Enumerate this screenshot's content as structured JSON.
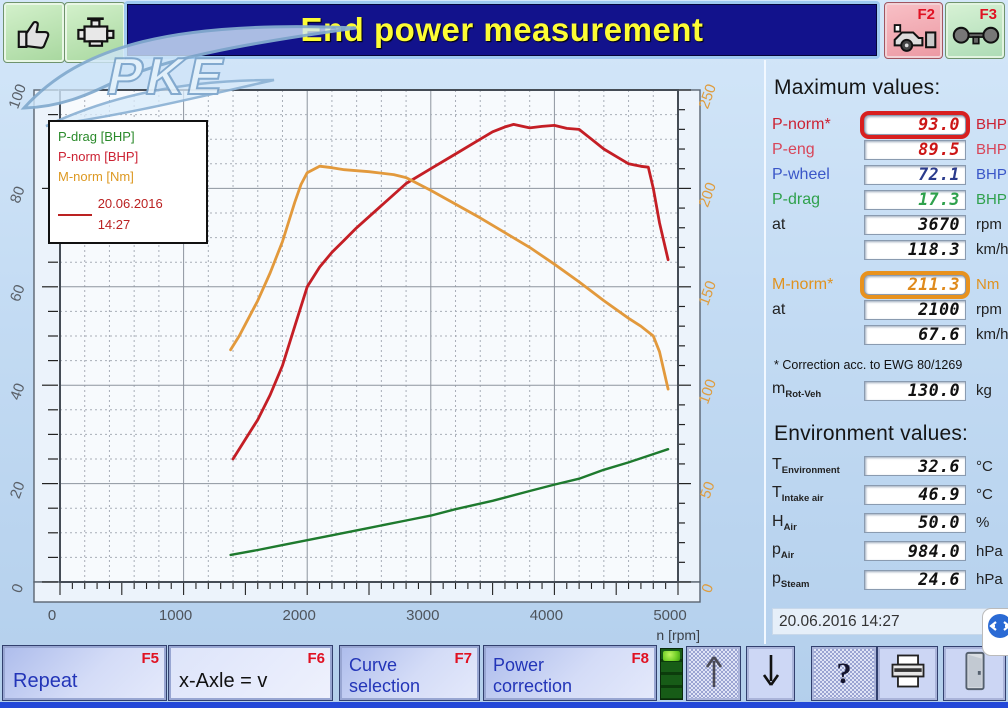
{
  "header": {
    "title": "End power measurement",
    "f2": "F2",
    "f3": "F3"
  },
  "watermark_text": "PKE",
  "chart_data": {
    "type": "line",
    "title": "",
    "xlabel": "n [rpm]",
    "x_range": [
      0,
      5000
    ],
    "x_ticks": [
      0,
      1000,
      2000,
      3000,
      4000,
      5000
    ],
    "x_minor_step": 200,
    "x_tick_step": 100,
    "y_left": {
      "range": [
        0,
        100
      ],
      "ticks": [
        0,
        20,
        40,
        60,
        80,
        100
      ],
      "minor_step": 5,
      "label_color": "#5a6068"
    },
    "y_right": {
      "range": [
        0,
        250
      ],
      "ticks": [
        0,
        50,
        100,
        150,
        200,
        250
      ],
      "tick_step": 10,
      "label_color": "#de9c3e"
    },
    "grid": "minor dashed, major solid",
    "legend_position": "top-left",
    "legend": {
      "entries": [
        {
          "label": "P-drag [BHP]",
          "color": "#2a8a2a"
        },
        {
          "label": "P-norm [BHP]",
          "color": "#cc2233"
        },
        {
          "label": "M-norm [Nm]",
          "color": "#dd9922"
        }
      ],
      "run": {
        "label": "20.06.2016 14:27",
        "color": "#bb2222"
      }
    },
    "series": [
      {
        "name": "P-drag",
        "unit": "BHP",
        "axis": "left",
        "color": "#1e7a2e",
        "width": 2.4,
        "points": [
          [
            1380,
            5.5
          ],
          [
            1600,
            6.5
          ],
          [
            1800,
            7.5
          ],
          [
            2000,
            8.5
          ],
          [
            2200,
            9.5
          ],
          [
            2500,
            11
          ],
          [
            2800,
            12.5
          ],
          [
            3000,
            13.5
          ],
          [
            3200,
            14.8
          ],
          [
            3500,
            16.5
          ],
          [
            3800,
            18.5
          ],
          [
            4000,
            19.8
          ],
          [
            4200,
            21
          ],
          [
            4400,
            22.8
          ],
          [
            4600,
            24.3
          ],
          [
            4800,
            26
          ],
          [
            4920,
            27
          ]
        ]
      },
      {
        "name": "P-norm",
        "unit": "BHP",
        "axis": "left",
        "color": "#c41e25",
        "width": 2.8,
        "points": [
          [
            1400,
            25
          ],
          [
            1500,
            29
          ],
          [
            1600,
            33
          ],
          [
            1700,
            38
          ],
          [
            1800,
            44
          ],
          [
            1900,
            52
          ],
          [
            2000,
            60
          ],
          [
            2100,
            64
          ],
          [
            2200,
            67
          ],
          [
            2300,
            69.5
          ],
          [
            2400,
            72
          ],
          [
            2600,
            76.5
          ],
          [
            2800,
            81
          ],
          [
            3000,
            84
          ],
          [
            3200,
            87
          ],
          [
            3400,
            90
          ],
          [
            3500,
            91.5
          ],
          [
            3600,
            92.5
          ],
          [
            3670,
            93
          ],
          [
            3800,
            92.3
          ],
          [
            3900,
            92.6
          ],
          [
            4000,
            92.8
          ],
          [
            4100,
            92.2
          ],
          [
            4200,
            92
          ],
          [
            4300,
            90
          ],
          [
            4400,
            88
          ],
          [
            4500,
            86.5
          ],
          [
            4600,
            85
          ],
          [
            4700,
            84.5
          ],
          [
            4760,
            84.3
          ],
          [
            4800,
            80
          ],
          [
            4850,
            73
          ],
          [
            4920,
            65.5
          ]
        ]
      },
      {
        "name": "M-norm",
        "unit": "Nm",
        "axis": "right",
        "color": "#e2993c",
        "width": 2.8,
        "points": [
          [
            1380,
            118
          ],
          [
            1450,
            125
          ],
          [
            1500,
            131
          ],
          [
            1600,
            143
          ],
          [
            1700,
            157
          ],
          [
            1800,
            173
          ],
          [
            1900,
            193
          ],
          [
            1950,
            202
          ],
          [
            2000,
            208
          ],
          [
            2100,
            211.3
          ],
          [
            2200,
            210.5
          ],
          [
            2300,
            209.5
          ],
          [
            2500,
            208.5
          ],
          [
            2700,
            207
          ],
          [
            2800,
            205.5
          ],
          [
            3000,
            199
          ],
          [
            3200,
            192
          ],
          [
            3400,
            185
          ],
          [
            3600,
            177.5
          ],
          [
            3800,
            170
          ],
          [
            4000,
            161.5
          ],
          [
            4200,
            152.5
          ],
          [
            4400,
            143
          ],
          [
            4600,
            134
          ],
          [
            4700,
            130
          ],
          [
            4800,
            125
          ],
          [
            4850,
            117
          ],
          [
            4920,
            98
          ]
        ]
      }
    ]
  },
  "max_panel": {
    "heading": "Maximum values:",
    "rows": [
      {
        "label": "P-norm*",
        "value": "93.0",
        "unit": "BHP",
        "color": "#cc2233",
        "value_color": "#cc1515",
        "highlight": "#d81f1f"
      },
      {
        "label": "P-eng",
        "value": "89.5",
        "unit": "BHP",
        "color": "#d84558",
        "value_color": "#cc1515"
      },
      {
        "label": "P-wheel",
        "value": "72.1",
        "unit": "BHP",
        "color": "#3a56c8",
        "value_color": "#2b3b8c"
      },
      {
        "label": "P-drag",
        "value": "17.3",
        "unit": "BHP",
        "color": "#2fa14c",
        "value_color": "#2fa14c"
      },
      {
        "label": "at",
        "value": "3670",
        "unit": "rpm",
        "color": "#222222",
        "value_color": "#111111"
      },
      {
        "label": "",
        "value": "118.3",
        "unit": "km/h",
        "color": "#222222",
        "value_color": "#111111"
      },
      {
        "label": "M-norm*",
        "value": "211.3",
        "unit": "Nm",
        "color": "#e0921e",
        "value_color": "#df8a1c",
        "highlight": "#e8921e",
        "gap": true
      },
      {
        "label": "at",
        "value": "2100",
        "unit": "rpm",
        "color": "#222222",
        "value_color": "#111111"
      },
      {
        "label": "",
        "value": "67.6",
        "unit": "km/h",
        "color": "#222222",
        "value_color": "#111111"
      }
    ],
    "note": "* Correction acc. to EWG 80/1269",
    "mass": {
      "main": "m",
      "sub": "Rot-Veh",
      "value": "130.0",
      "unit": "kg"
    }
  },
  "env_panel": {
    "heading": "Environment values:",
    "rows": [
      {
        "main": "T",
        "sub": "Environment",
        "value": "32.6",
        "unit": "°C"
      },
      {
        "main": "T",
        "sub": "Intake air",
        "value": "46.9",
        "unit": "°C"
      },
      {
        "main": "H",
        "sub": "Air",
        "value": "50.0",
        "unit": "%"
      },
      {
        "main": "p",
        "sub": "Air",
        "value": "984.0",
        "unit": "hPa"
      },
      {
        "main": "p",
        "sub": "Steam",
        "value": "24.6",
        "unit": "hPa"
      }
    ]
  },
  "datetime": "20.06.2016  14:27",
  "footer": {
    "repeat": {
      "label": "Repeat",
      "fkey": "F5"
    },
    "xaxle": {
      "label": "x-Axle = v",
      "fkey": "F6"
    },
    "curve": {
      "line1": "Curve",
      "line2": "selection",
      "fkey": "F7"
    },
    "power": {
      "line1": "Power",
      "line2": "correction",
      "fkey": "F8"
    },
    "help": "?"
  }
}
